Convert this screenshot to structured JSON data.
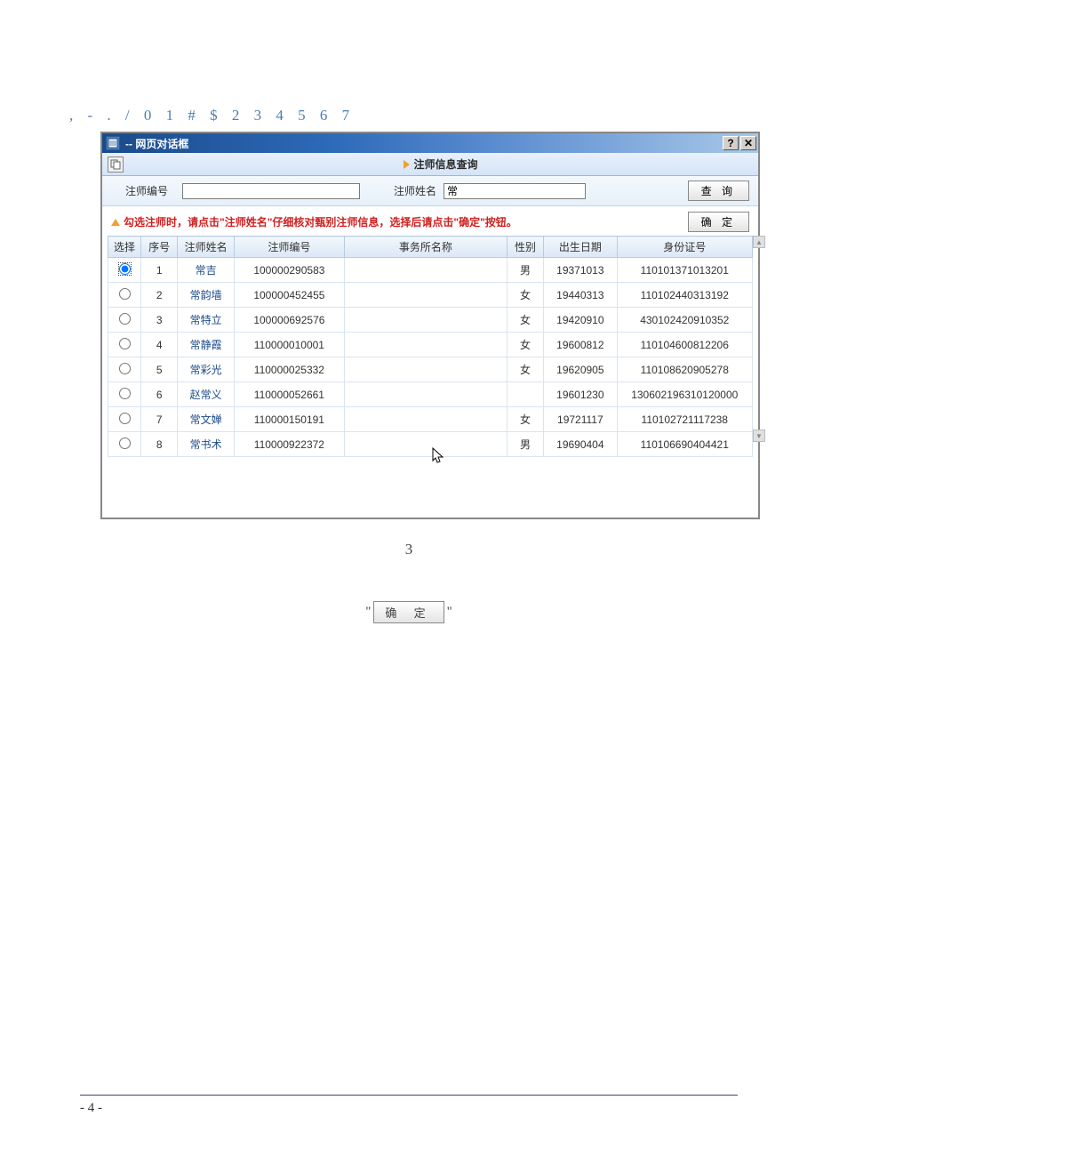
{
  "top_line": ", - . / 0 1 # $ 2 3 4 5 6 7",
  "dialog": {
    "title": "-- 网页对话框",
    "help_btn": "?",
    "close_btn": "✕",
    "panel_title": "注师信息查询",
    "field_id_label": "注师编号",
    "field_name_label": "注师姓名",
    "field_name_value": "常",
    "query_btn": "查 询",
    "instruction": "勾选注师时，请点击\"注师姓名\"仔细核对甄别注师信息，选择后请点击\"确定\"按钮。",
    "confirm_btn": "确  定"
  },
  "columns": {
    "sel": "选择",
    "idx": "序号",
    "name": "注师姓名",
    "id": "注师编号",
    "firm": "事务所名称",
    "sex": "性别",
    "dob": "出生日期",
    "nid": "身份证号"
  },
  "rows": [
    {
      "idx": "1",
      "name": "常吉",
      "id": "100000290583",
      "firm": "",
      "sex": "男",
      "dob": "19371013",
      "nid": "110101371013201",
      "selected": true
    },
    {
      "idx": "2",
      "name": "常韵墙",
      "id": "100000452455",
      "firm": "",
      "sex": "女",
      "dob": "19440313",
      "nid": "110102440313192",
      "selected": false
    },
    {
      "idx": "3",
      "name": "常特立",
      "id": "100000692576",
      "firm": "",
      "sex": "女",
      "dob": "19420910",
      "nid": "430102420910352",
      "selected": false
    },
    {
      "idx": "4",
      "name": "常静霞",
      "id": "110000010001",
      "firm": "",
      "sex": "女",
      "dob": "19600812",
      "nid": "110104600812206",
      "selected": false
    },
    {
      "idx": "5",
      "name": "常彩光",
      "id": "110000025332",
      "firm": "",
      "sex": "女",
      "dob": "19620905",
      "nid": "110108620905278",
      "selected": false
    },
    {
      "idx": "6",
      "name": "赵常义",
      "id": "110000052661",
      "firm": "",
      "sex": "",
      "dob": "19601230",
      "nid": "130602196310120000",
      "selected": false
    },
    {
      "idx": "7",
      "name": "常文婵",
      "id": "110000150191",
      "firm": "",
      "sex": "女",
      "dob": "19721117",
      "nid": "110102721117238",
      "selected": false
    },
    {
      "idx": "8",
      "name": "常书术",
      "id": "110000922372",
      "firm": "",
      "sex": "男",
      "dob": "19690404",
      "nid": "110106690404421",
      "selected": false
    }
  ],
  "figure_number": "3",
  "bottom_confirm": "确  定",
  "page_footer": "- 4 -",
  "colors": {
    "titlebar_from": "#1a4a8a",
    "titlebar_to": "#a8c8e8",
    "link": "#1a4a8a",
    "instr": "#d02020",
    "header_text": "#4a7db5"
  }
}
